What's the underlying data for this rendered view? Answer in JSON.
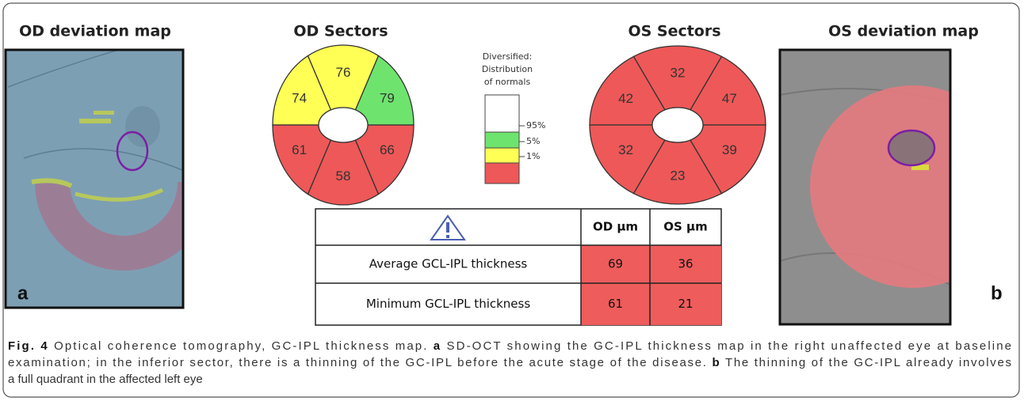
{
  "od_map": {
    "title": "OD deviation map",
    "label": "a"
  },
  "od_sectors": {
    "title": "OD Sectors",
    "values": [
      74,
      76,
      79,
      61,
      58,
      66
    ],
    "colors": [
      "#ffff55",
      "#ffff55",
      "#6ee46e",
      "#ee5858",
      "#ee5858",
      "#ee5858"
    ]
  },
  "legend": {
    "title": [
      "Diversified:",
      "Distribution",
      "of normals"
    ],
    "levels": [
      "95%",
      "5%",
      "1%"
    ],
    "colors": [
      "#ffffff",
      "#6ee46e",
      "#ffff55",
      "#ee5858"
    ]
  },
  "os_sectors": {
    "title": "OS Sectors",
    "values": [
      42,
      32,
      47,
      32,
      23,
      39
    ],
    "colors": [
      "#ee5858",
      "#ee5858",
      "#ee5858",
      "#ee5858",
      "#ee5858",
      "#ee5858"
    ]
  },
  "os_map": {
    "title": "OS deviation map",
    "label": "b"
  },
  "table": {
    "header": [
      "OD µm",
      "OS µm"
    ],
    "rows": [
      [
        "Average GCL-IPL thickness",
        69,
        36
      ],
      [
        "Minimum GCL-IPL thickness",
        61,
        21
      ]
    ],
    "cell_color": "#ee5c5c"
  },
  "caption": {
    "lines": [
      [
        {
          "text": "Fig. 4",
          "bold": true
        },
        {
          "text": " Optical coherence tomography, GC-IPL thickness map. "
        },
        {
          "text": "a",
          "bold": true
        },
        {
          "text": " SD-OCT showing the GC-IPL thickness map in the right unaffected eye at baseline"
        }
      ],
      [
        {
          "text": "examination; in the inferior sector, there is a thinning of the GC-IPL before the acute stage of the disease. "
        },
        {
          "text": "b",
          "bold": true
        },
        {
          "text": " The thinning of the GC-IPL already involves"
        }
      ],
      [
        {
          "text": "a full quadrant in the affected left eye"
        }
      ]
    ]
  }
}
